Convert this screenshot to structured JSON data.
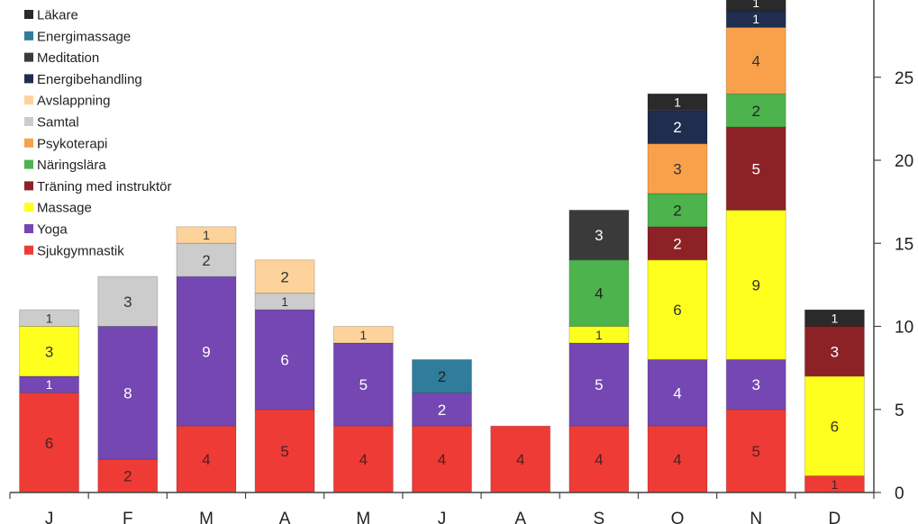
{
  "chart_data": {
    "type": "bar",
    "stacked": true,
    "categories": [
      "J",
      "F",
      "M",
      "A",
      "M",
      "J",
      "A",
      "S",
      "O",
      "N",
      "D"
    ],
    "ylim": [
      0,
      30
    ],
    "yticks": [
      0,
      5,
      10,
      15,
      20,
      25
    ],
    "y_axis_side": "right",
    "grid": false,
    "legend_position": "top-left",
    "series": [
      {
        "name": "Sjukgymnastik",
        "color": "#ee3b36",
        "text_color": "#4a2320",
        "values": [
          6,
          2,
          4,
          5,
          4,
          4,
          4,
          4,
          4,
          5,
          1
        ]
      },
      {
        "name": "Yoga",
        "color": "#7447b2",
        "text_color": "#ffffff",
        "values": [
          1,
          8,
          9,
          6,
          5,
          2,
          0,
          5,
          4,
          3,
          0
        ]
      },
      {
        "name": "Massage",
        "color": "#ffff1e",
        "text_color": "#333333",
        "values": [
          3,
          0,
          0,
          0,
          0,
          0,
          0,
          1,
          6,
          9,
          6
        ]
      },
      {
        "name": "Träning med instruktör",
        "color": "#8c2226",
        "text_color": "#ffffff",
        "values": [
          0,
          0,
          0,
          0,
          0,
          0,
          0,
          0,
          2,
          5,
          3
        ]
      },
      {
        "name": "Näringslära",
        "color": "#4db34d",
        "text_color": "#222222",
        "values": [
          0,
          0,
          0,
          0,
          0,
          0,
          0,
          4,
          2,
          2,
          0
        ]
      },
      {
        "name": "Psykoterapi",
        "color": "#f8a14a",
        "text_color": "#333333",
        "values": [
          0,
          0,
          0,
          0,
          0,
          0,
          0,
          0,
          3,
          4,
          0
        ]
      },
      {
        "name": "Samtal",
        "color": "#cccccc",
        "text_color": "#333333",
        "values": [
          1,
          3,
          2,
          1,
          0,
          0,
          0,
          0,
          0,
          0,
          0
        ]
      },
      {
        "name": "Avslappning",
        "color": "#fdd39b",
        "text_color": "#333333",
        "values": [
          0,
          0,
          1,
          2,
          1,
          0,
          0,
          0,
          0,
          0,
          0
        ]
      },
      {
        "name": "Energibehandling",
        "color": "#1f2d4f",
        "text_color": "#ffffff",
        "values": [
          0,
          0,
          0,
          0,
          0,
          0,
          0,
          0,
          2,
          1,
          0
        ]
      },
      {
        "name": "Meditation",
        "color": "#3a3a3a",
        "text_color": "#ffffff",
        "values": [
          0,
          0,
          0,
          0,
          0,
          0,
          0,
          3,
          0,
          0,
          0
        ]
      },
      {
        "name": "Energimassage",
        "color": "#2f7d9a",
        "text_color": "#222222",
        "values": [
          0,
          0,
          0,
          0,
          0,
          2,
          0,
          0,
          0,
          0,
          0
        ]
      },
      {
        "name": "Läkare",
        "color": "#2a2a2a",
        "text_color": "#ffffff",
        "values": [
          0,
          0,
          0,
          0,
          0,
          0,
          0,
          0,
          1,
          1,
          1
        ]
      }
    ],
    "legend_order": [
      "Läkare",
      "Energimassage",
      "Meditation",
      "Energibehandling",
      "Avslappning",
      "Samtal",
      "Psykoterapi",
      "Näringslära",
      "Träning med instruktör",
      "Massage",
      "Yoga",
      "Sjukgymnastik"
    ]
  }
}
